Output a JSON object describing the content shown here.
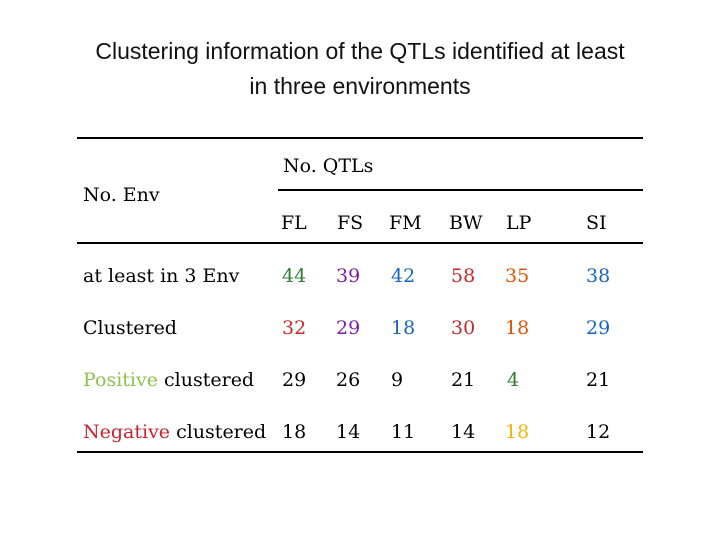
{
  "title": {
    "line1": "Clustering information of the QTLs identified at least",
    "line2": "in three environments"
  },
  "table": {
    "group_header": "No. QTLs",
    "row_header": "No. Env",
    "columns": [
      "FL",
      "FS",
      "FM",
      "BW",
      "LP",
      "SI"
    ],
    "rows": [
      {
        "label": "at least in 3 Env",
        "values": [
          "44",
          "39",
          "42",
          "58",
          "35",
          "38"
        ]
      },
      {
        "label": "Clustered",
        "values": [
          "32",
          "29",
          "18",
          "30",
          "18",
          "29"
        ]
      },
      {
        "label_colored": "Positive",
        "label_rest": " clustered",
        "values": [
          "29",
          "26",
          "9",
          "21",
          "4",
          "21"
        ]
      },
      {
        "label_colored": "Negative",
        "label_rest": " clustered",
        "values": [
          "18",
          "14",
          "11",
          "14",
          "18",
          "12"
        ]
      }
    ]
  },
  "colors": {
    "positive": "#8BC34A",
    "negative": "#D0202E",
    "rows": {
      "1": [
        "#2E7D32",
        "#7B1FA2",
        "#1565C0",
        "#C62828",
        "#E65100",
        "#1565C0"
      ],
      "2": [
        "#C62828",
        "#7B1FA2",
        "#1565C0",
        "#C62828",
        "#E65100",
        "#1565C0"
      ],
      "3": [
        "#000000",
        "#000000",
        "#000000",
        "#000000",
        "#2E7D32",
        "#000000"
      ],
      "4": [
        "#000000",
        "#000000",
        "#000000",
        "#000000",
        "#F4B400",
        "#000000"
      ]
    }
  }
}
